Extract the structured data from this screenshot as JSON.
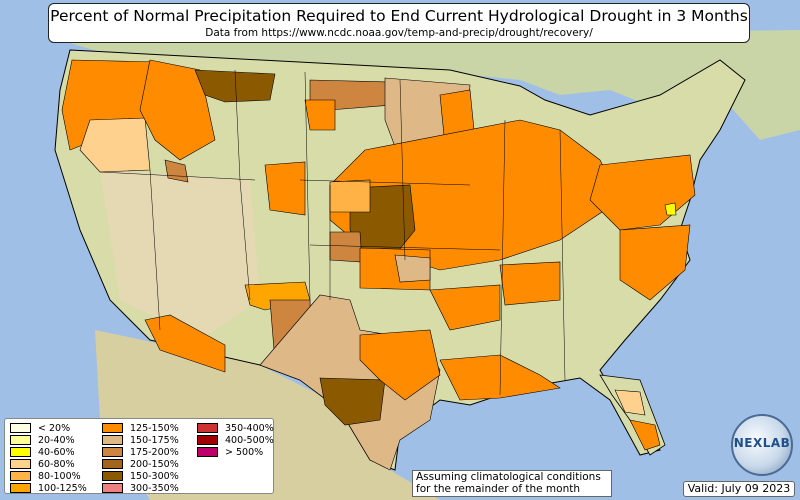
{
  "title": "Percent of Normal Precipitation Required to End Current Hydrological Drought in 3 Months",
  "subtitle": "Data from https://www.ncdc.noaa.gov/temp-and-precip/drought/recovery/",
  "legend": [
    {
      "label": "< 20%",
      "color": "#ffffe6"
    },
    {
      "label": "20-40%",
      "color": "#ffff99"
    },
    {
      "label": "40-60%",
      "color": "#ffff00"
    },
    {
      "label": "60-80%",
      "color": "#ffd18f"
    },
    {
      "label": "80-100%",
      "color": "#ffb347"
    },
    {
      "label": "100-125%",
      "color": "#ffa500"
    },
    {
      "label": "125-150%",
      "color": "#ff8c00"
    },
    {
      "label": "150-175%",
      "color": "#deb887"
    },
    {
      "label": "175-200%",
      "color": "#cd853f"
    },
    {
      "label": "200-150%",
      "color": "#a0651a"
    },
    {
      "label": "150-300%",
      "color": "#8b5a00"
    },
    {
      "label": "300-350%",
      "color": "#f08080"
    },
    {
      "label": "350-400%",
      "color": "#cd3333"
    },
    {
      "label": "400-500%",
      "color": "#a00000"
    },
    {
      "label": "> 500%",
      "color": "#c0006a"
    }
  ],
  "note": {
    "line1": "Assuming climatological conditions",
    "line2": "for the remainder of the month"
  },
  "valid": "Valid: July 09 2023",
  "logo": {
    "text": "NEXLAB"
  }
}
